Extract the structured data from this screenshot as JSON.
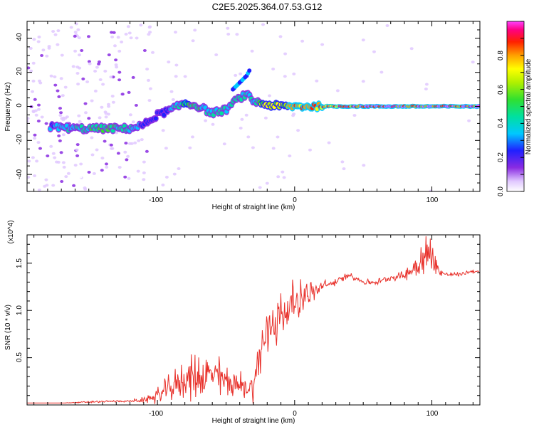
{
  "title": "C2E5.2025.364.07.53.G12",
  "colors": {
    "snr_line": "#e8302a",
    "axis": "#000000"
  },
  "chart_data": [
    {
      "type": "heatmap",
      "xlabel": "Height of straight line (km)",
      "ylabel": "Frequency (Hz)",
      "xlim": [
        -195,
        135
      ],
      "ylim": [
        -50,
        50
      ],
      "xticks": [
        -100,
        0,
        100
      ],
      "xtick_labels": [
        "-100",
        "0",
        "100"
      ],
      "yticks": [
        -40,
        -20,
        0,
        20,
        40
      ],
      "ytick_labels": [
        "-40",
        "-20",
        "0",
        "20",
        "40"
      ],
      "colorbar": {
        "label": "Normalized spectral amplitude",
        "range": [
          0,
          1
        ],
        "ticks": [
          0.0,
          0.2,
          0.4,
          0.6,
          0.8
        ],
        "tick_labels": [
          "0.0",
          "0.2",
          "0.4",
          "0.6",
          "0.8"
        ],
        "colormap": "rainbow"
      },
      "ridge": {
        "x": [
          -175,
          -160,
          -145,
          -130,
          -120,
          -110,
          -100,
          -90,
          -80,
          -70,
          -60,
          -50,
          -45,
          -40,
          -35,
          -30,
          -20,
          -10,
          0,
          10,
          20,
          50,
          100,
          135
        ],
        "freq": [
          -12,
          -13,
          -13,
          -13,
          -13,
          -11,
          -5,
          -2,
          2,
          0,
          -4,
          -2,
          2,
          5,
          7,
          3,
          1,
          0,
          0,
          0,
          0,
          0,
          0,
          0
        ],
        "amplitude": [
          0.35,
          0.45,
          0.5,
          0.5,
          0.45,
          0.3,
          0.3,
          0.35,
          0.55,
          0.5,
          0.4,
          0.45,
          0.45,
          0.5,
          0.45,
          0.4,
          0.7,
          0.7,
          0.8,
          0.85,
          0.9,
          0.95,
          0.95,
          0.95
        ]
      },
      "branch": {
        "x": [
          -45,
          -40,
          -35,
          -33
        ],
        "freq": [
          10,
          14,
          18,
          21
        ]
      }
    },
    {
      "type": "line",
      "xlabel": "Height of straight line (km)",
      "ylabel": "SNR (10 * v/v)",
      "y_scale_label": "(x10^4)",
      "xlim": [
        -195,
        135
      ],
      "ylim": [
        0,
        1.8
      ],
      "xticks": [
        -100,
        0,
        100
      ],
      "xtick_labels": [
        "-100",
        "0",
        "100"
      ],
      "yticks": [
        0.5,
        1.0,
        1.5
      ],
      "ytick_labels": [
        "0.5",
        "1.0",
        "1.5"
      ],
      "series": [
        {
          "name": "SNR",
          "x": [
            -195,
            -170,
            -150,
            -130,
            -120,
            -110,
            -100,
            -90,
            -80,
            -70,
            -60,
            -50,
            -40,
            -35,
            -30,
            -28,
            -25,
            -20,
            -15,
            -10,
            -5,
            0,
            5,
            10,
            15,
            20,
            30,
            40,
            50,
            60,
            70,
            80,
            85,
            90,
            95,
            100,
            105,
            110,
            120,
            130,
            135
          ],
          "y": [
            0.02,
            0.02,
            0.03,
            0.04,
            0.04,
            0.05,
            0.1,
            0.18,
            0.28,
            0.3,
            0.32,
            0.26,
            0.2,
            0.18,
            0.2,
            0.35,
            0.55,
            0.75,
            0.9,
            0.95,
            1.0,
            1.1,
            1.15,
            1.18,
            1.2,
            1.25,
            1.3,
            1.38,
            1.3,
            1.3,
            1.35,
            1.37,
            1.42,
            1.5,
            1.55,
            1.6,
            1.42,
            1.38,
            1.38,
            1.42,
            1.4
          ],
          "noise": [
            0,
            0,
            0.01,
            0.01,
            0.01,
            0.03,
            0.08,
            0.15,
            0.2,
            0.25,
            0.22,
            0.2,
            0.15,
            0.12,
            0.15,
            0.2,
            0.25,
            0.35,
            0.3,
            0.28,
            0.25,
            0.2,
            0.18,
            0.15,
            0.1,
            0.06,
            0.04,
            0.03,
            0.03,
            0.03,
            0.03,
            0.05,
            0.1,
            0.2,
            0.25,
            0.2,
            0.05,
            0.03,
            0.02,
            0.02,
            0.02
          ]
        }
      ]
    }
  ]
}
